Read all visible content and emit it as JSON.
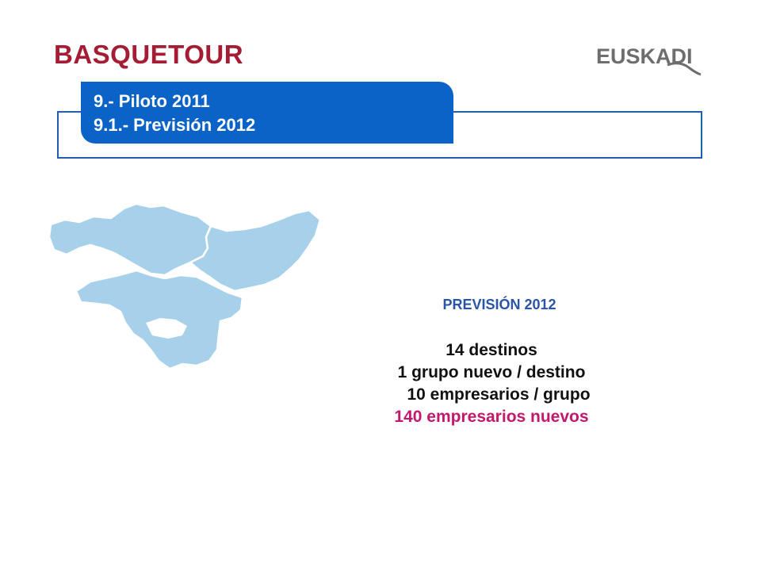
{
  "logos": {
    "left_text": "BASQUETOUR",
    "right_text": "EUSKADI"
  },
  "title": {
    "line1": "9.- Piloto 2011",
    "line2": "9.1.- Previsión 2012"
  },
  "content": {
    "heading": "PREVISIÓN 2012",
    "lines": [
      "14 destinos",
      "1 grupo nuevo / destino",
      "10 empresarios / grupo",
      "140 empresarios nuevos"
    ]
  },
  "colors": {
    "brand_red": "#a51d34",
    "title_blue": "#0b63c7",
    "frame_blue": "#1f5fb0",
    "map_blue": "#a7d0ea",
    "highlight_magenta": "#c4186e"
  }
}
